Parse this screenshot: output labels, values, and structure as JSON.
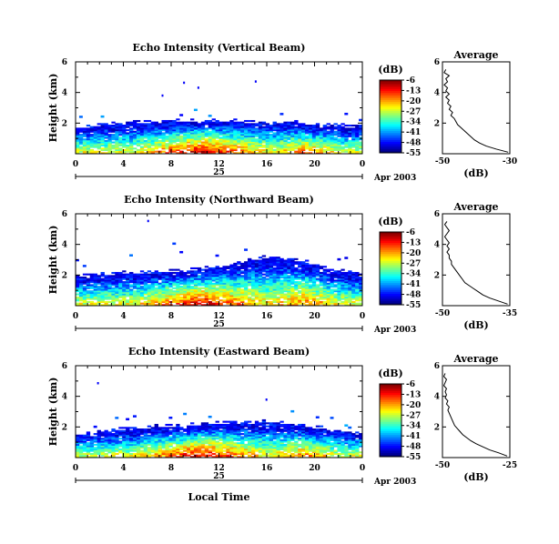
{
  "chart_data": [
    {
      "type": "heatmap",
      "title": "Echo Intensity (Vertical Beam)",
      "ylabel": "Height (km)",
      "xlabel": "",
      "x_ticks": [
        "0",
        "4",
        "8",
        "12",
        "16",
        "20",
        "0"
      ],
      "y_ticks": [
        "6",
        "4",
        "2"
      ],
      "date_label": "25",
      "month_label": "Apr 2003",
      "xlim": [
        0,
        24
      ],
      "ylim": [
        0,
        6
      ],
      "colorbar": {
        "unit": "(dB)",
        "ticks": [
          "-6",
          "-13",
          "-20",
          "-27",
          "-34",
          "-41",
          "-48",
          "-55"
        ],
        "range": [
          -55,
          -6
        ]
      },
      "echo_top_km": [
        1.7,
        1.7,
        1.8,
        1.9,
        1.9,
        2.0,
        2.0,
        2.0,
        2.1,
        2.1,
        2.1,
        2.1,
        2.1,
        2.1,
        2.0,
        2.0,
        2.0,
        2.0,
        2.0,
        1.9,
        1.8,
        1.8,
        1.8,
        1.7,
        1.7
      ],
      "profile": {
        "title": "Average",
        "xlabel": "(dB)",
        "x_ticks": [
          "-50",
          "-30"
        ],
        "xlim": [
          -50,
          -30
        ],
        "y_ticks": [
          "6",
          "4",
          "2"
        ],
        "ylim": [
          0,
          6
        ],
        "heights_km": [
          0.1,
          0.3,
          0.5,
          0.7,
          0.9,
          1.1,
          1.3,
          1.5,
          1.7,
          1.9,
          2.1,
          2.3,
          2.5,
          2.7,
          2.9,
          3.1,
          3.3,
          3.5,
          3.7,
          3.9,
          4.1,
          4.3,
          4.5,
          4.7,
          4.9,
          5.1,
          5.3,
          5.5
        ],
        "values_db": [
          -30.5,
          -34,
          -37,
          -39,
          -40.5,
          -41.5,
          -42.5,
          -43.5,
          -44.5,
          -45.5,
          -46,
          -46.5,
          -47.5,
          -47,
          -48,
          -47.5,
          -48.5,
          -48,
          -49,
          -48,
          -49,
          -48.5,
          -49.5,
          -48.5,
          -49,
          -48,
          -49.5,
          -49
        ]
      }
    },
    {
      "type": "heatmap",
      "title": "Echo Intensity (Northward Beam)",
      "ylabel": "Height (km)",
      "xlabel": "",
      "x_ticks": [
        "0",
        "4",
        "8",
        "12",
        "16",
        "20",
        "0"
      ],
      "y_ticks": [
        "6",
        "4",
        "2"
      ],
      "date_label": "25",
      "month_label": "Apr 2003",
      "xlim": [
        0,
        24
      ],
      "ylim": [
        0,
        6
      ],
      "colorbar": {
        "unit": "(dB)",
        "ticks": [
          "-6",
          "-13",
          "-20",
          "-27",
          "-34",
          "-41",
          "-48",
          "-55"
        ],
        "range": [
          -55,
          -6
        ]
      },
      "echo_top_km": [
        1.9,
        1.9,
        2.0,
        2.0,
        2.1,
        2.1,
        2.1,
        2.2,
        2.2,
        2.2,
        2.3,
        2.4,
        2.5,
        2.6,
        2.8,
        3.0,
        3.1,
        3.0,
        2.9,
        2.8,
        2.6,
        2.4,
        2.2,
        2.1,
        2.0
      ],
      "profile": {
        "title": "Average",
        "xlabel": "(dB)",
        "x_ticks": [
          "-50",
          "-35"
        ],
        "xlim": [
          -50,
          -35
        ],
        "y_ticks": [
          "6",
          "4",
          "2"
        ],
        "ylim": [
          0,
          6
        ],
        "heights_km": [
          0.1,
          0.3,
          0.5,
          0.7,
          0.9,
          1.1,
          1.3,
          1.5,
          1.7,
          1.9,
          2.1,
          2.3,
          2.5,
          2.7,
          2.9,
          3.1,
          3.3,
          3.5,
          3.7,
          3.9,
          4.1,
          4.3,
          4.5,
          4.7,
          4.9,
          5.1,
          5.3,
          5.5
        ],
        "values_db": [
          -35.5,
          -37.5,
          -39.5,
          -41,
          -42,
          -43,
          -44,
          -45,
          -45.5,
          -46,
          -46.5,
          -47,
          -47.5,
          -48,
          -48,
          -48.5,
          -48.5,
          -49,
          -48.5,
          -49,
          -48.5,
          -49,
          -49.5,
          -49,
          -48.5,
          -49,
          -49.5,
          -49
        ]
      }
    },
    {
      "type": "heatmap",
      "title": "Echo Intensity (Eastward Beam)",
      "ylabel": "Height (km)",
      "xlabel": "Local Time",
      "x_ticks": [
        "0",
        "4",
        "8",
        "12",
        "16",
        "20",
        "0"
      ],
      "y_ticks": [
        "6",
        "4",
        "2"
      ],
      "date_label": "25",
      "month_label": "Apr 2003",
      "xlim": [
        0,
        24
      ],
      "ylim": [
        0,
        6
      ],
      "colorbar": {
        "unit": "(dB)",
        "ticks": [
          "-6",
          "-13",
          "-20",
          "-27",
          "-34",
          "-41",
          "-48",
          "-55"
        ],
        "range": [
          -55,
          -6
        ]
      },
      "echo_top_km": [
        1.4,
        1.5,
        1.6,
        1.7,
        1.8,
        1.8,
        1.9,
        2.0,
        2.0,
        2.0,
        2.1,
        2.1,
        2.2,
        2.2,
        2.2,
        2.2,
        2.3,
        2.2,
        2.1,
        2.0,
        1.9,
        1.8,
        1.7,
        1.6,
        1.5
      ],
      "profile": {
        "title": "Average",
        "xlabel": "(dB)",
        "x_ticks": [
          "-50",
          "-25"
        ],
        "xlim": [
          -50,
          -25
        ],
        "y_ticks": [
          "6",
          "4",
          "2"
        ],
        "ylim": [
          0,
          6
        ],
        "heights_km": [
          0.1,
          0.3,
          0.5,
          0.7,
          0.9,
          1.1,
          1.3,
          1.5,
          1.7,
          1.9,
          2.1,
          2.3,
          2.5,
          2.7,
          2.9,
          3.1,
          3.3,
          3.5,
          3.7,
          3.9,
          4.1,
          4.3,
          4.5,
          4.7,
          4.9,
          5.1,
          5.3,
          5.5
        ],
        "values_db": [
          -26,
          -29,
          -32.5,
          -35,
          -37.5,
          -39.5,
          -41,
          -42.5,
          -43.5,
          -44.5,
          -45.5,
          -46,
          -46.5,
          -47,
          -47.5,
          -48,
          -47.5,
          -48.5,
          -48,
          -49,
          -48.5,
          -49,
          -48.5,
          -49.5,
          -49,
          -48.5,
          -49.5,
          -49
        ]
      }
    }
  ]
}
